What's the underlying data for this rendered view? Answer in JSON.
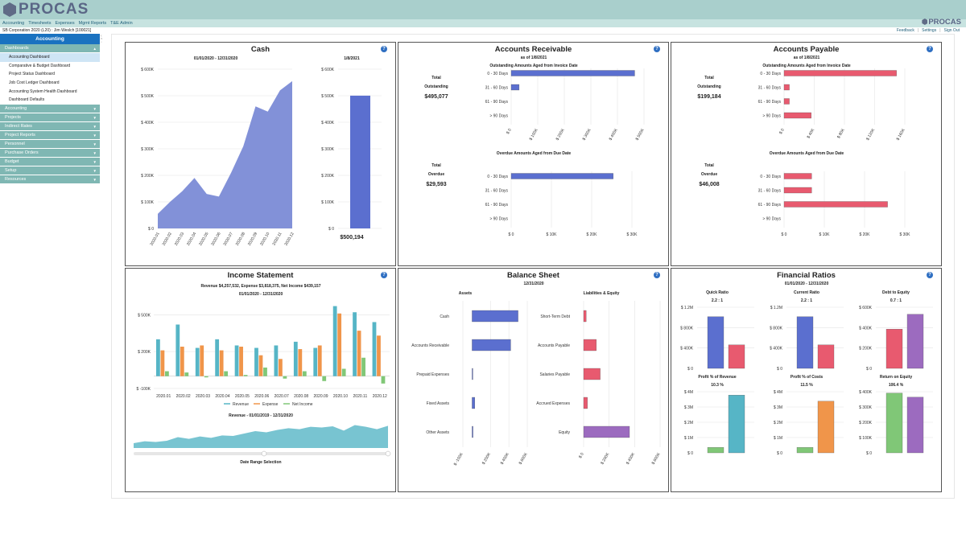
{
  "app": {
    "logo": "PROCAS",
    "corner_logo": "PROCAS"
  },
  "nav": {
    "menu": [
      "Accounting",
      "Timesheets",
      "Expenses",
      "Mgmt Reports",
      "T&E Admin"
    ]
  },
  "info": {
    "company_user": "SB Corporation 2020 (L20)  :  Jim Weslch [100021]",
    "links": [
      "Feedback",
      "Settings",
      "Sign Out"
    ]
  },
  "sidebar": {
    "header": "Accounting",
    "dashboards_label": "Dashboards",
    "items": [
      "Accounting Dashboard",
      "Comparative & Budget Dashboard",
      "Project Status Dashboard",
      "Job Cost Ledger Dashboard",
      "Accounting System Health Dashboard",
      "Dashboard Defaults"
    ],
    "selected": 0,
    "sections": [
      "Accounting",
      "Projects",
      "Indirect Rates",
      "Project Reports",
      "Personnel",
      "Purchase Orders",
      "Budget",
      "Setup",
      "Resources"
    ]
  },
  "colors": {
    "blue": "#5b6fcf",
    "red": "#e85a6f",
    "teal": "#56b5c6",
    "orange": "#f0954a",
    "green": "#80c777",
    "purple": "#9c6bbf"
  },
  "cash": {
    "title": "Cash",
    "help": "?",
    "range": "01/01/2020 - 12/31/2020",
    "current_date": "1/8/2021",
    "current_value": "$500,194",
    "chart_data": {
      "type": "area",
      "x": [
        "2020.01",
        "2020.02",
        "2020.03",
        "2020.04",
        "2020.05",
        "2020.06",
        "2020.07",
        "2020.08",
        "2020.09",
        "2020.10",
        "2020.11",
        "2020.12"
      ],
      "values": [
        55000,
        100000,
        140000,
        190000,
        130000,
        120000,
        210000,
        310000,
        460000,
        440000,
        520000,
        555000
      ],
      "ylim": [
        0,
        600000
      ],
      "yticks": [
        "$ 0",
        "$ 100K",
        "$ 200K",
        "$ 300K",
        "$ 400K",
        "$ 500K",
        "$ 600K"
      ],
      "current": {
        "value": 500194,
        "ylim": [
          0,
          600000
        ]
      }
    }
  },
  "ar": {
    "title": "Accounts Receivable",
    "help": "?",
    "as_of": "as of 1/8/2021",
    "sub1": "Outstanding Amounts Aged from Invoice Date",
    "sub2": "Overdue Amounts Aged from Due Date",
    "total_label": "Total Outstanding",
    "total": "$495,077",
    "overdue_label": "Total Overdue",
    "overdue": "$29,593",
    "chart_data": [
      {
        "type": "bar",
        "categories": [
          "0 - 30 Days",
          "31 - 60 Days",
          "61 - 90 Days",
          "> 90 Days"
        ],
        "values": [
          465000,
          30000,
          0,
          0
        ],
        "xlim": [
          0,
          500000
        ],
        "xticks": [
          "$ 0",
          "$ 100K",
          "$ 200K",
          "$ 300K",
          "$ 400K",
          "$ 500K"
        ]
      },
      {
        "type": "bar",
        "categories": [
          "0 - 30 Days",
          "31 - 60 Days",
          "61 - 90 Days",
          "> 90 Days"
        ],
        "values": [
          29593,
          0,
          0,
          0
        ],
        "xlim": [
          0,
          35000
        ],
        "xticks": [
          "$ 0",
          "$ 10K",
          "$ 20K",
          "$ 30K"
        ]
      }
    ]
  },
  "ap": {
    "title": "Accounts Payable",
    "help": "?",
    "as_of": "as of 1/8/2021",
    "sub1": "Outstanding Amounts Aged from Invoice Date",
    "sub2": "Overdue Amounts Aged from Due Date",
    "total_label": "Total Outstanding",
    "total": "$199,184",
    "overdue_label": "Total Overdue",
    "overdue": "$46,008",
    "chart_data": [
      {
        "type": "bar",
        "categories": [
          "0 - 30 Days",
          "31 - 60 Days",
          "61 - 90 Days",
          "> 90 Days"
        ],
        "values": [
          149000,
          7000,
          7000,
          36000
        ],
        "xlim": [
          0,
          160000
        ],
        "xticks": [
          "$ 0",
          "$ 40K",
          "$ 80K",
          "$ 120K",
          "$ 160K"
        ]
      },
      {
        "type": "bar",
        "categories": [
          "0 - 30 Days",
          "31 - 60 Days",
          "61 - 90 Days",
          "> 90 Days"
        ],
        "values": [
          8000,
          8000,
          30000,
          0
        ],
        "xlim": [
          0,
          35000
        ],
        "xticks": [
          "$ 0",
          "$ 10K",
          "$ 20K",
          "$ 30K"
        ]
      }
    ]
  },
  "income": {
    "title": "Income Statement",
    "help": "?",
    "summary": "Revenue $4,257,532, Expense $3,818,375, Net Income $439,157",
    "range": "01/01/2020 - 12/31/2020",
    "nav_title": "Revenue - 01/01/2019 - 12/31/2020",
    "nav_label": "Date Range Selection",
    "chart_data": {
      "type": "bar",
      "categories": [
        "2020.01",
        "2020.02",
        "2020.03",
        "2020.04",
        "2020.05",
        "2020.06",
        "2020.07",
        "2020.08",
        "2020.09",
        "2020.10",
        "2020.11",
        "2020.12"
      ],
      "series": [
        {
          "name": "Revenue",
          "values": [
            300000,
            420000,
            230000,
            300000,
            250000,
            230000,
            250000,
            280000,
            230000,
            570000,
            520000,
            440000
          ]
        },
        {
          "name": "Expense",
          "values": [
            210000,
            240000,
            250000,
            210000,
            240000,
            170000,
            140000,
            220000,
            250000,
            510000,
            370000,
            330000
          ]
        },
        {
          "name": "Net Income",
          "values": [
            40000,
            30000,
            -10000,
            40000,
            10000,
            70000,
            -20000,
            40000,
            -40000,
            60000,
            150000,
            -60000
          ]
        }
      ],
      "ylim": [
        -120000,
        600000
      ],
      "yticks": [
        "$ -100K",
        "$ 200K",
        "$ 500K"
      ],
      "ytick_values": [
        -100000,
        200000,
        500000
      ],
      "navigator_values": [
        20,
        28,
        25,
        30,
        45,
        38,
        48,
        42,
        52,
        50,
        60,
        70,
        65,
        75,
        82,
        78,
        88,
        85,
        90,
        72,
        95,
        88,
        78,
        92
      ]
    }
  },
  "balance": {
    "title": "Balance Sheet",
    "help": "?",
    "date": "12/31/2020",
    "assets_label": "Assets",
    "liab_label": "Liabilities & Equity",
    "chart_data": [
      {
        "type": "bar",
        "name": "Assets",
        "categories": [
          "Cash",
          "Accounts Receivable",
          "Prepaid Expenses",
          "Fixed Assets",
          "Other Assets"
        ],
        "values": [
          500000,
          420000,
          5000,
          30000,
          10000
        ],
        "xlim": [
          -100000,
          600000
        ],
        "xticks": [
          "$ -100K",
          "$ 200K",
          "$ 400K",
          "$ 600K"
        ],
        "xtick_values": [
          -100000,
          200000,
          400000,
          600000
        ]
      },
      {
        "type": "bar",
        "name": "Liabilities & Equity",
        "categories": [
          "Short-Term Debt",
          "Accounts Payable",
          "Salaries Payable",
          "Accrued Expenses",
          "Equity"
        ],
        "values": [
          20000,
          100000,
          130000,
          30000,
          360000
        ],
        "xlim": [
          0,
          600000
        ],
        "xticks": [
          "$ 0",
          "$ 200K",
          "$ 400K",
          "$ 600K"
        ],
        "xtick_values": [
          0,
          200000,
          400000,
          600000
        ]
      }
    ]
  },
  "ratios": {
    "title": "Financial Ratios",
    "help": "?",
    "range": "01/01/2020 - 12/31/2020",
    "chart_data": [
      {
        "type": "bar",
        "title": "Quick Ratio",
        "value": "2.2 : 1",
        "values": [
          1100000,
          500000
        ],
        "ylim": [
          0,
          1300000
        ],
        "yticks": [
          "$ 0",
          "$ 400K",
          "$ 800K",
          "$ 1.2M"
        ],
        "colors": [
          "blue",
          "red"
        ]
      },
      {
        "type": "bar",
        "title": "Current Ratio",
        "value": "2.2 : 1",
        "values": [
          1100000,
          500000
        ],
        "ylim": [
          0,
          1300000
        ],
        "yticks": [
          "$ 0",
          "$ 400K",
          "$ 800K",
          "$ 1.2M"
        ],
        "colors": [
          "blue",
          "red"
        ]
      },
      {
        "type": "bar",
        "title": "Debt to Equity",
        "value": "0.7 : 1",
        "values": [
          450000,
          620000
        ],
        "ylim": [
          0,
          700000
        ],
        "yticks": [
          "$ 0",
          "$ 200K",
          "$ 400K",
          "$ 600K"
        ],
        "colors": [
          "red",
          "purple"
        ]
      },
      {
        "type": "bar",
        "title": "Profit % of Revenue",
        "value": "10.3 %",
        "values": [
          400000,
          4250000
        ],
        "ylim": [
          0,
          4500000
        ],
        "yticks": [
          "$ 0",
          "$ 1M",
          "$ 2M",
          "$ 3M",
          "$ 4M"
        ],
        "colors": [
          "green",
          "teal"
        ]
      },
      {
        "type": "bar",
        "title": "Profit % of Costs",
        "value": "11.5 %",
        "values": [
          400000,
          3800000
        ],
        "ylim": [
          0,
          4500000
        ],
        "yticks": [
          "$ 0",
          "$ 1M",
          "$ 2M",
          "$ 3M",
          "$ 4M"
        ],
        "colors": [
          "green",
          "orange"
        ]
      },
      {
        "type": "bar",
        "title": "Return on Equity",
        "value": "106.4 %",
        "values": [
          440000,
          410000
        ],
        "ylim": [
          0,
          450000
        ],
        "yticks": [
          "$ 0",
          "$ 100K",
          "$ 200K",
          "$ 300K",
          "$ 400K"
        ],
        "colors": [
          "green",
          "purple"
        ]
      }
    ]
  }
}
